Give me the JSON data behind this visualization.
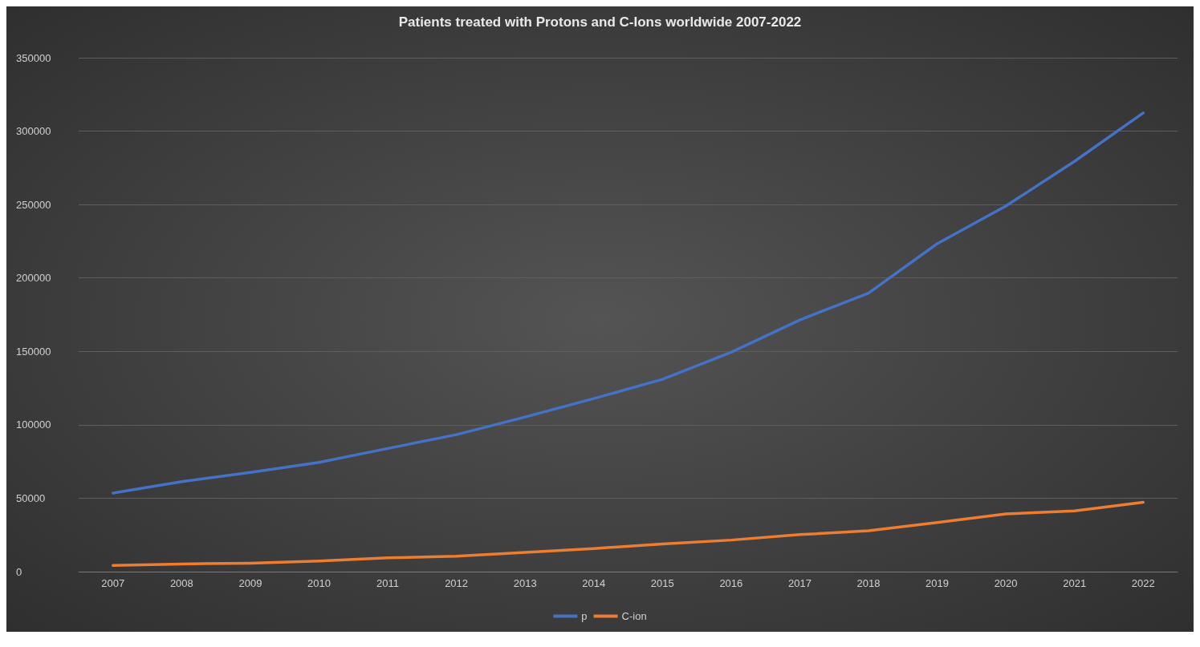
{
  "chart_data": {
    "type": "line",
    "title": "Patients treated with Protons and C-Ions worldwide 2007-2022",
    "categories": [
      "2007",
      "2008",
      "2009",
      "2010",
      "2011",
      "2012",
      "2013",
      "2014",
      "2015",
      "2016",
      "2017",
      "2018",
      "2019",
      "2020",
      "2021",
      "2022"
    ],
    "series": [
      {
        "name": "p",
        "color": "#4472c4",
        "values": [
          53500,
          61300,
          67600,
          74400,
          83900,
          93300,
          105300,
          117900,
          131000,
          149400,
          171400,
          189700,
          223300,
          249000,
          279400,
          312400
        ]
      },
      {
        "name": "C-ion",
        "color": "#ed7d31",
        "values": [
          4200,
          5200,
          5800,
          7300,
          9400,
          10500,
          13100,
          15700,
          18900,
          21500,
          25200,
          27800,
          33500,
          39300,
          41400,
          47200
        ]
      }
    ],
    "ylim": [
      0,
      350000
    ],
    "yticks": [
      0,
      50000,
      100000,
      150000,
      200000,
      250000,
      300000,
      350000
    ],
    "grid": "y",
    "legend": "bottom",
    "marker": "none",
    "line_style": "solid"
  }
}
